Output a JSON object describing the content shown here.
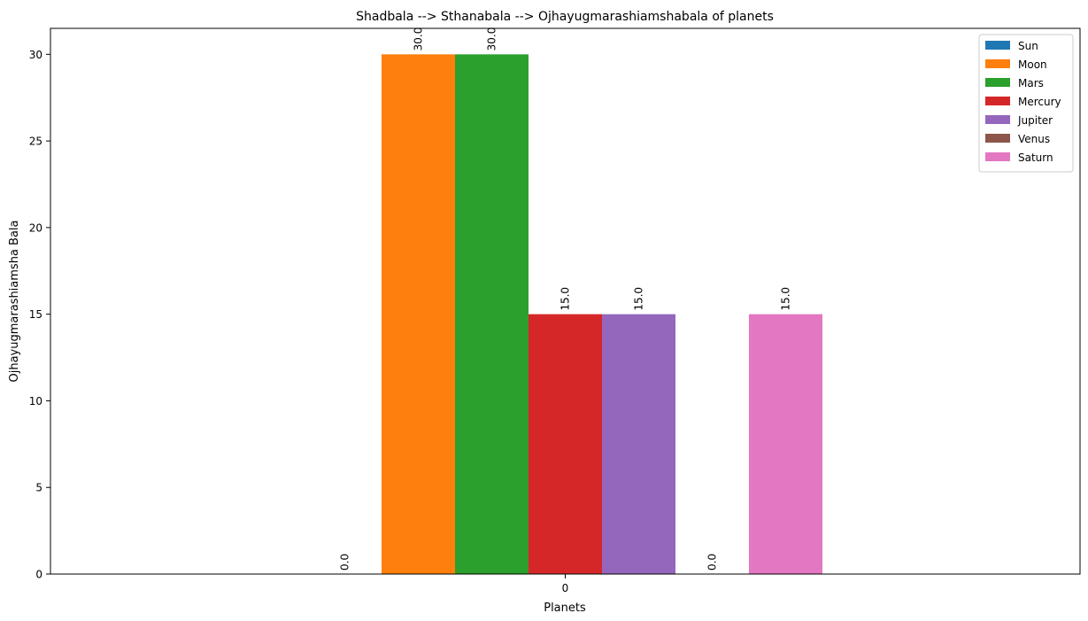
{
  "chart_data": {
    "type": "bar",
    "title": "Shadbala --> Sthanabala --> Ojhayugmarashiamshabala of planets",
    "xlabel": "Planets",
    "ylabel": "Ojhayugmarashiamsha Bala",
    "categories": [
      "0"
    ],
    "ylim": [
      0,
      31.5
    ],
    "yticks": [
      0,
      5,
      10,
      15,
      20,
      25,
      30
    ],
    "grid": false,
    "legend_position": "top-right",
    "series": [
      {
        "name": "Sun",
        "values": [
          0.0
        ],
        "color": "#1f77b4",
        "label": "0.0"
      },
      {
        "name": "Moon",
        "values": [
          30.0
        ],
        "color": "#ff7f0e",
        "label": "30.0"
      },
      {
        "name": "Mars",
        "values": [
          30.0
        ],
        "color": "#2ca02c",
        "label": "30.0"
      },
      {
        "name": "Mercury",
        "values": [
          15.0
        ],
        "color": "#d62728",
        "label": "15.0"
      },
      {
        "name": "Jupiter",
        "values": [
          15.0
        ],
        "color": "#9467bd",
        "label": "15.0"
      },
      {
        "name": "Venus",
        "values": [
          0.0
        ],
        "color": "#8c564b",
        "label": "0.0"
      },
      {
        "name": "Saturn",
        "values": [
          15.0
        ],
        "color": "#e377c2",
        "label": "15.0"
      }
    ]
  }
}
